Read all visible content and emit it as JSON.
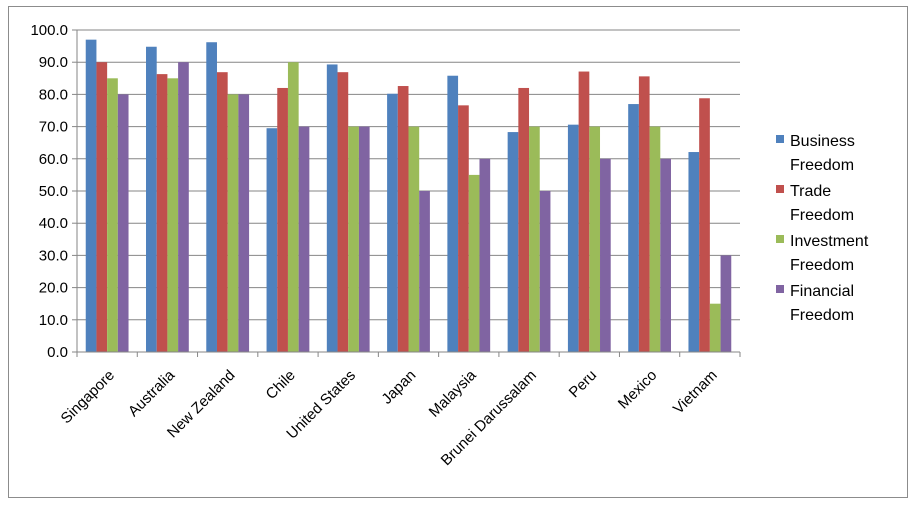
{
  "chart_data": {
    "type": "bar",
    "title": "",
    "xlabel": "",
    "ylabel": "",
    "ylim": [
      0,
      100
    ],
    "y_tick_step": 10,
    "y_tick_format": "0.0",
    "grid": "horizontal major gridlines",
    "legend_position": "right",
    "categories": [
      "Singapore",
      "Australia",
      "New Zealand",
      "Chile",
      "United States",
      "Japan",
      "Malaysia",
      "Brunei Darussalam",
      "Peru",
      "Mexico",
      "Vietnam"
    ],
    "series": [
      {
        "name": "Business Freedom",
        "legend_lines": [
          "Business",
          "Freedom"
        ],
        "color": "#4f81bd",
        "values": [
          97.0,
          94.8,
          96.2,
          69.5,
          89.3,
          80.2,
          85.8,
          68.3,
          70.6,
          77.0,
          62.1
        ]
      },
      {
        "name": "Trade Freedom",
        "legend_lines": [
          "Trade",
          "Freedom"
        ],
        "color": "#c0504d",
        "values": [
          90.0,
          86.3,
          86.9,
          82.0,
          86.9,
          82.6,
          76.6,
          82.0,
          87.1,
          85.6,
          78.8
        ]
      },
      {
        "name": "Investment Freedom",
        "legend_lines": [
          "Investment",
          "Freedom"
        ],
        "color": "#9bbb59",
        "values": [
          85.0,
          85.0,
          80.0,
          90.0,
          70.0,
          70.0,
          55.0,
          70.0,
          70.0,
          70.0,
          15.0
        ]
      },
      {
        "name": "Financial Freedom",
        "legend_lines": [
          "Financial",
          "Freedom"
        ],
        "color": "#8064a2",
        "values": [
          80.0,
          90.0,
          80.0,
          70.0,
          70.0,
          50.0,
          60.0,
          50.0,
          60.0,
          60.0,
          30.0
        ]
      }
    ]
  }
}
